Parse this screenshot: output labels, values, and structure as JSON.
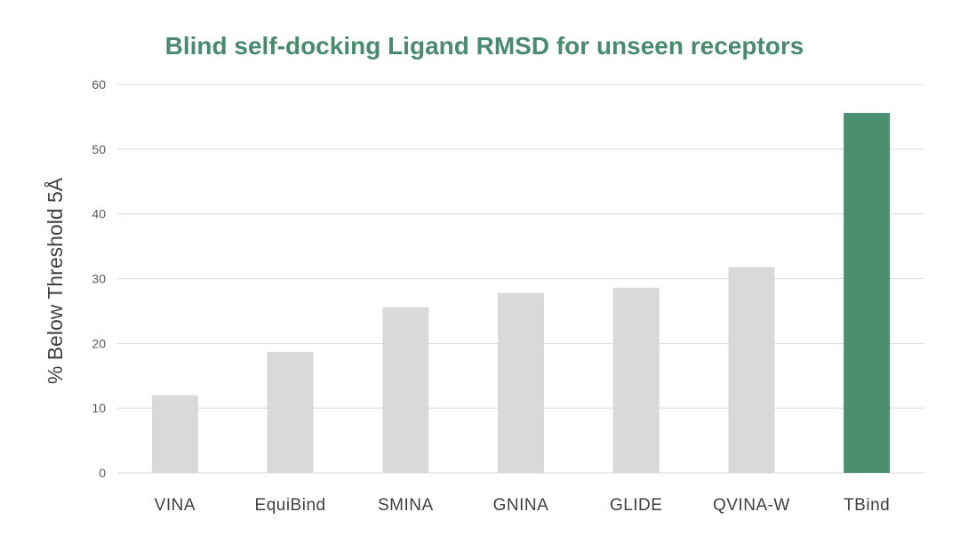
{
  "chart_data": {
    "type": "bar",
    "title": "Blind self-docking Ligand RMSD for unseen receptors",
    "xlabel": "",
    "ylabel": "% Below Threshold 5Å",
    "ylim": [
      0,
      60
    ],
    "yticks": [
      0,
      10,
      20,
      30,
      40,
      50,
      60
    ],
    "grid": true,
    "legend": "none",
    "categories": [
      "VINA",
      "EquiBind",
      "SMINA",
      "GNINA",
      "GLIDE",
      "QVINA-W",
      "TBind"
    ],
    "values": [
      12,
      18.7,
      25.6,
      27.8,
      28.6,
      31.8,
      55.6
    ],
    "highlight_category": "TBind"
  },
  "colors": {
    "title": "#4a8a6e",
    "bar_default": "#d9d9d9",
    "bar_highlight": "#4a9070",
    "gridline": "#d9d9d9"
  }
}
